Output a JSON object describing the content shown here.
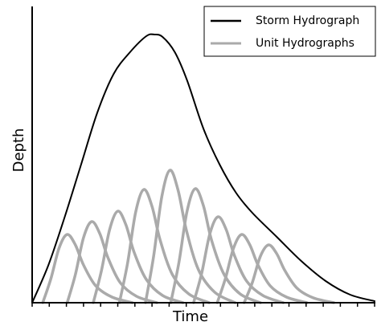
{
  "chart_data": {
    "type": "line",
    "x_label": "Time",
    "y_label": "Depth",
    "xlim": [
      0,
      420
    ],
    "ylim": [
      0,
      369
    ],
    "xticks": [
      0,
      21,
      42,
      63,
      84,
      105,
      126,
      147,
      168,
      189,
      210,
      231,
      252,
      273,
      294,
      315,
      336,
      357,
      378,
      399,
      420
    ],
    "series": [
      {
        "name": "Storm Hydrograph",
        "color": "#000000",
        "x": [
          0,
          20,
          40,
          60,
          80,
          100,
          120,
          140,
          150,
          160,
          175,
          190,
          210,
          230,
          250,
          270,
          300,
          330,
          360,
          390,
          420
        ],
        "values": [
          0,
          47,
          107,
          172,
          237,
          285,
          312,
          332,
          334,
          331,
          312,
          277,
          217,
          172,
          137,
          112,
          82,
          52,
          27,
          10,
          2
        ]
      }
    ],
    "unit_hydrographs": {
      "name": "Unit Hydrographs",
      "color": "#aaaaaa",
      "curves": [
        {
          "x": [
            13,
            23,
            33,
            43,
            53,
            63,
            78,
            98,
            123
          ],
          "values": [
            0,
            30,
            68,
            85,
            72,
            47,
            21,
            7,
            0
          ]
        },
        {
          "x": [
            43,
            53,
            63,
            73,
            83,
            93,
            108,
            128,
            153
          ],
          "values": [
            0,
            35,
            81,
            101,
            86,
            56,
            25,
            8,
            0
          ]
        },
        {
          "x": [
            75,
            85,
            95,
            105,
            115,
            125,
            140,
            160,
            185
          ],
          "values": [
            0,
            40,
            91,
            114,
            97,
            63,
            29,
            9,
            0
          ]
        },
        {
          "x": [
            107,
            117,
            127,
            137,
            147,
            157,
            172,
            192,
            217
          ],
          "values": [
            0,
            49,
            113,
            141,
            120,
            78,
            35,
            11,
            0
          ]
        },
        {
          "x": [
            139,
            149,
            159,
            169,
            179,
            189,
            204,
            224,
            249
          ],
          "values": [
            0,
            58,
            132,
            165,
            140,
            91,
            41,
            13,
            0
          ]
        },
        {
          "x": [
            170,
            180,
            190,
            200,
            210,
            220,
            235,
            255,
            280
          ],
          "values": [
            0,
            50,
            114,
            142,
            121,
            78,
            36,
            11,
            0
          ]
        },
        {
          "x": [
            198,
            208,
            218,
            228,
            238,
            248,
            263,
            283,
            308
          ],
          "values": [
            0,
            37,
            86,
            107,
            91,
            59,
            27,
            9,
            0
          ]
        },
        {
          "x": [
            227,
            237,
            247,
            257,
            267,
            277,
            292,
            312,
            337
          ],
          "values": [
            0,
            30,
            68,
            85,
            72,
            47,
            21,
            7,
            0
          ]
        },
        {
          "x": [
            260,
            270,
            280,
            290,
            300,
            310,
            325,
            345,
            370
          ],
          "values": [
            0,
            25,
            58,
            72,
            61,
            40,
            18,
            6,
            0
          ]
        }
      ]
    }
  }
}
